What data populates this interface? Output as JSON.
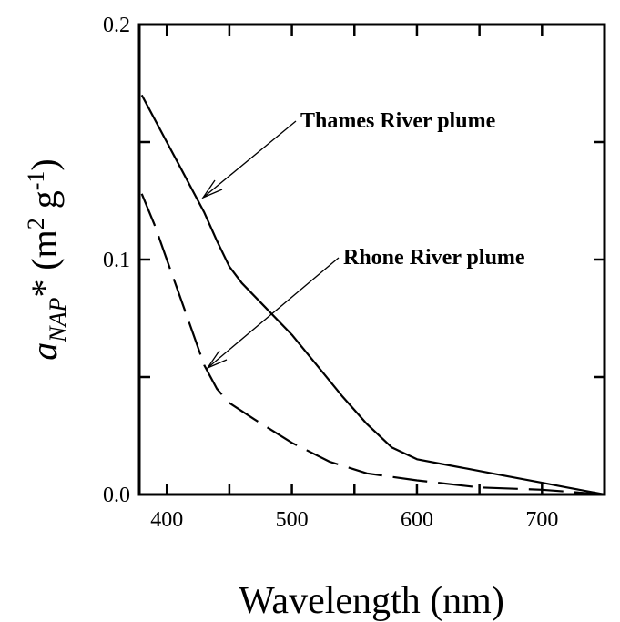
{
  "chart_data": {
    "type": "line",
    "xlabel": "Wavelength (nm)",
    "ylabel": [
      "a",
      "NAP",
      "* (m",
      "2",
      " g",
      "-1",
      ")"
    ],
    "xlim": [
      378,
      750
    ],
    "ylim": [
      0,
      0.2
    ],
    "xticks": [
      400,
      500,
      600,
      700
    ],
    "xminor_ticks": [
      450,
      550,
      650
    ],
    "yticks": [
      {
        "value": 0,
        "label": "0.0"
      },
      0.1,
      0.2
    ],
    "yminor_ticks": [
      0.05,
      0.15
    ],
    "annotations": [
      "Thames River plume",
      "Rhone River plume"
    ],
    "series": [
      {
        "name": "Thames River plume",
        "color": "#000000",
        "dash": "solid",
        "x": [
          380,
          385,
          400,
          410,
          420,
          430,
          440,
          450,
          460,
          480,
          500,
          520,
          540,
          560,
          580,
          600,
          620,
          640,
          660,
          680,
          700,
          720,
          740,
          750
        ],
        "values": [
          0.17,
          0.165,
          0.15,
          0.14,
          0.13,
          0.12,
          0.108,
          0.097,
          0.09,
          0.079,
          0.068,
          0.055,
          0.042,
          0.03,
          0.02,
          0.015,
          0.013,
          0.011,
          0.009,
          0.007,
          0.005,
          0.003,
          0.001,
          0
        ]
      },
      {
        "name": "Rhone River plume",
        "color": "#000000",
        "dash": "dashed",
        "x": [
          380,
          390,
          400,
          410,
          420,
          430,
          440,
          450,
          470,
          500,
          530,
          560,
          600,
          650,
          700,
          750
        ],
        "values": [
          0.128,
          0.115,
          0.1,
          0.085,
          0.07,
          0.055,
          0.045,
          0.039,
          0.032,
          0.022,
          0.014,
          0.009,
          0.006,
          0.003,
          0.002,
          0
        ]
      }
    ]
  }
}
